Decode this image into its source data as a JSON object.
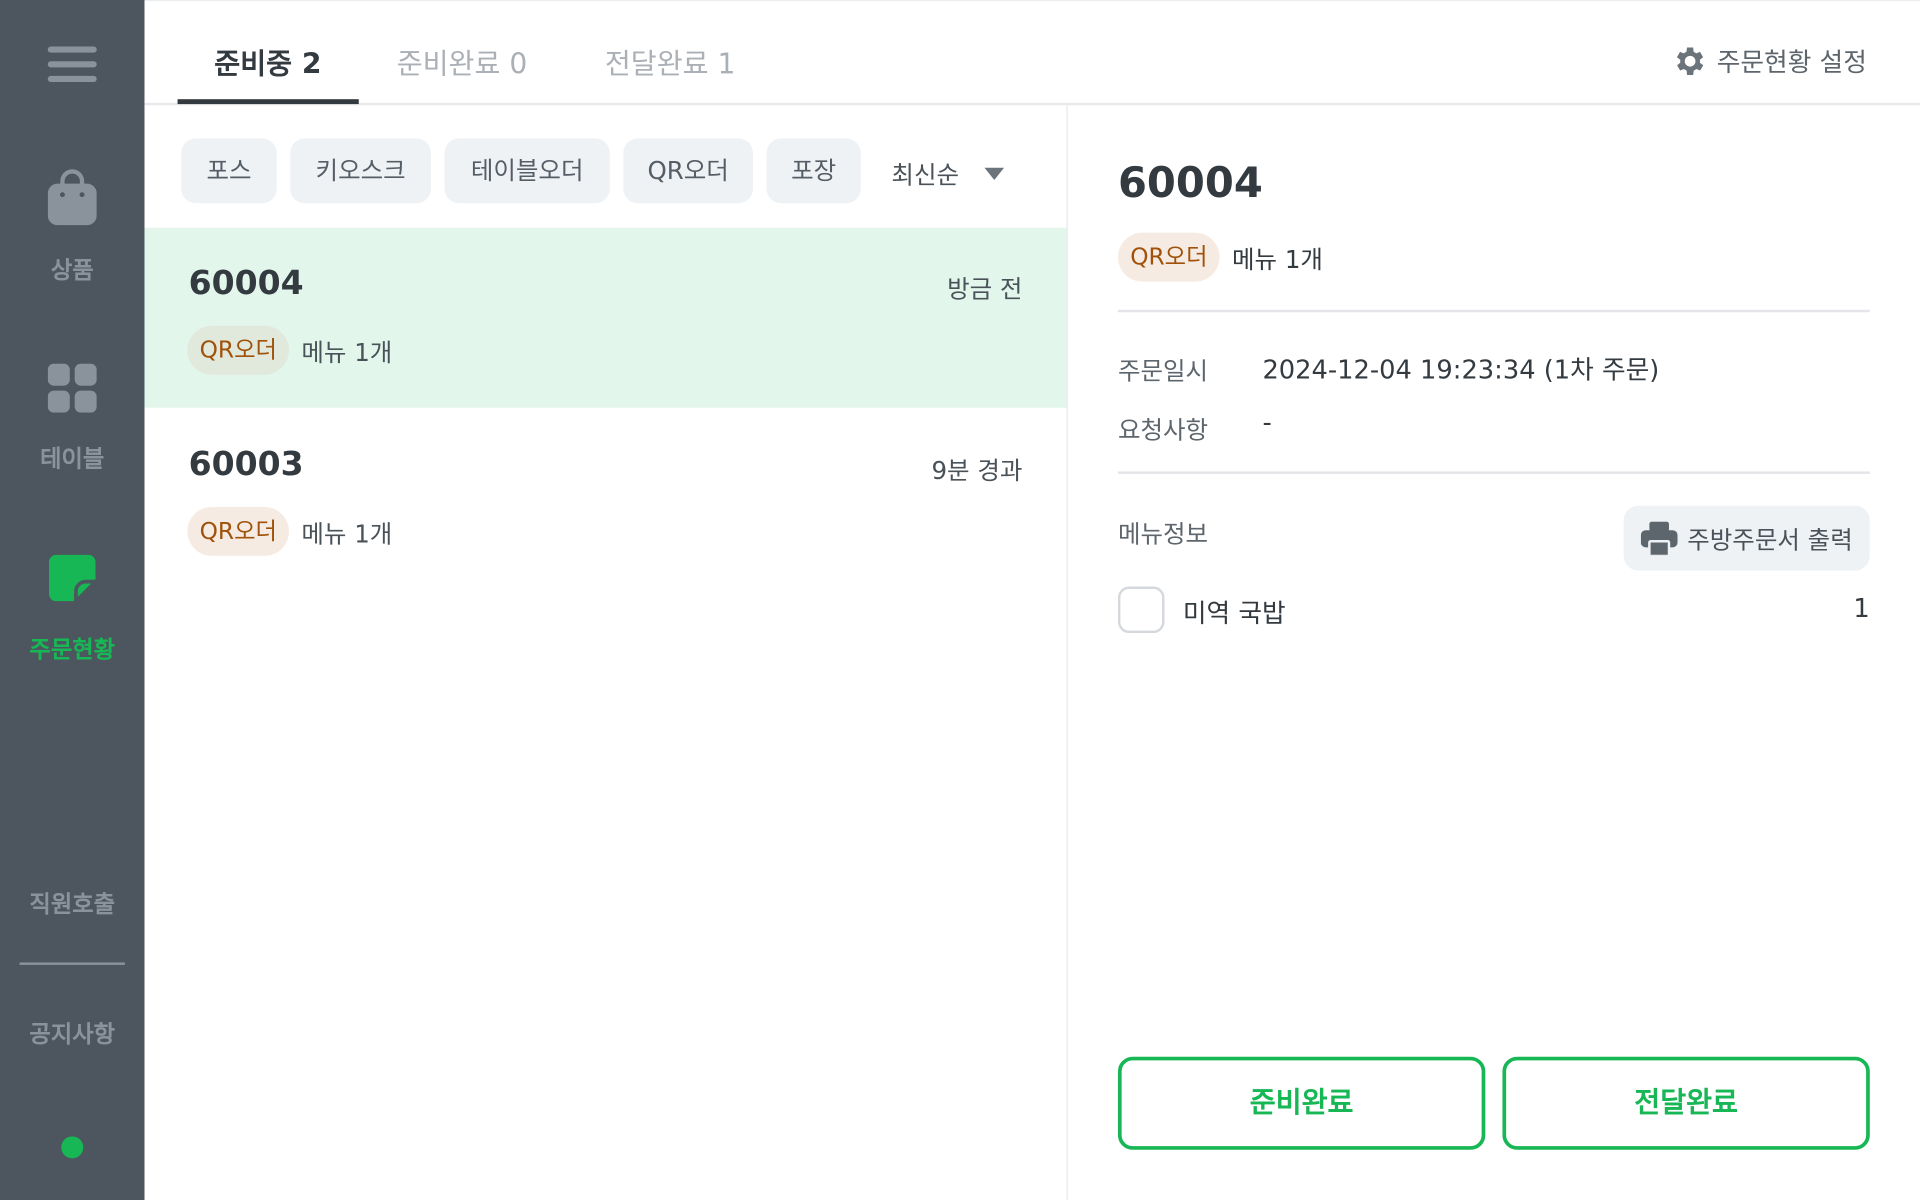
{
  "sidebar": {
    "items": [
      {
        "label": "상품",
        "icon": "shopping-bag-icon"
      },
      {
        "label": "테이블",
        "icon": "grid-icon"
      },
      {
        "label": "주문현황",
        "icon": "order-note-icon",
        "active": true
      },
      {
        "label": "직원호출"
      },
      {
        "label": "공지사항"
      }
    ],
    "status_color": "#16b754"
  },
  "tabs": [
    {
      "label": "준비중 2",
      "active": true
    },
    {
      "label": "준비완료 0"
    },
    {
      "label": "전달완료 1"
    }
  ],
  "settings_label": "주문현황 설정",
  "filters": [
    "포스",
    "키오스크",
    "테이블오더",
    "QR오더",
    "포장"
  ],
  "sort": {
    "selected": "최신순"
  },
  "orders": [
    {
      "id": "60004",
      "time": "방금 전",
      "channel": "QR오더",
      "summary": "메뉴 1개",
      "selected": true
    },
    {
      "id": "60003",
      "time": "9분 경과",
      "channel": "QR오더",
      "summary": "메뉴 1개"
    }
  ],
  "detail": {
    "id": "60004",
    "channel": "QR오더",
    "summary": "메뉴 1개",
    "order_time_label": "주문일시",
    "order_time": "2024-12-04 19:23:34 (1차 주문)",
    "request_label": "요청사항",
    "request": "-",
    "menu_info_label": "메뉴정보",
    "print_label": "주방주문서 출력",
    "items": [
      {
        "name": "미역 국밥",
        "qty": "1",
        "checked": false
      }
    ],
    "ready_button": "준비완료",
    "deliver_button": "전달완료"
  },
  "colors": {
    "accent": "#16b754",
    "sidebar": "#4d555e",
    "selected_row": "#e3f6ec",
    "badge_text": "#a0520a"
  }
}
